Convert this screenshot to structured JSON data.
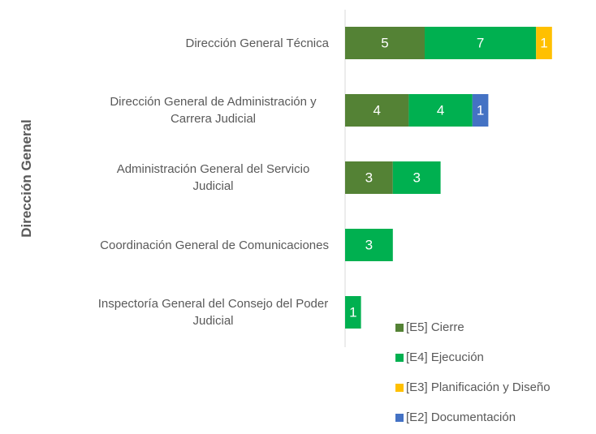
{
  "chart_data": {
    "type": "stacked-bar-horizontal",
    "y_label": "Dirección General",
    "categories": [
      "Dirección General Técnica",
      "Dirección General de Administración y Carrera Judicial",
      "Administración General del Servicio Judicial",
      "Coordinación General de Comunicaciones",
      "Inspectoría General del Consejo del Poder Judicial"
    ],
    "series": [
      {
        "name": "[E5] Cierre",
        "color": "#548235",
        "values": [
          5,
          4,
          3,
          null,
          null
        ]
      },
      {
        "name": "[E4] Ejecución",
        "color": "#00b050",
        "values": [
          7,
          4,
          3,
          3,
          1
        ]
      },
      {
        "name": "[E3] Planificación y Diseño",
        "color": "#ffc000",
        "values": [
          1,
          null,
          null,
          null,
          null
        ]
      },
      {
        "name": "[E2] Documentación",
        "color": "#4472c4",
        "values": [
          null,
          1,
          null,
          null,
          null
        ]
      }
    ]
  }
}
